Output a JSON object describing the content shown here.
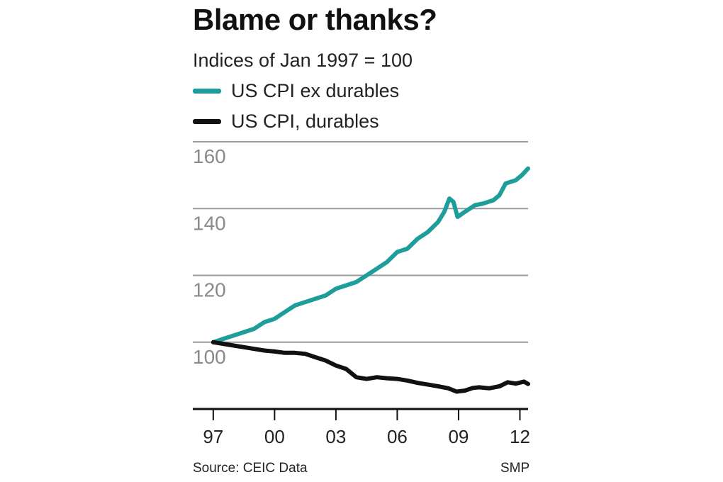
{
  "chart_data": {
    "type": "line",
    "title": "Blame or thanks?",
    "subtitle": "Indices of Jan 1997 = 100",
    "ylim": [
      80,
      160
    ],
    "y_ticks": [
      100,
      120,
      140,
      160
    ],
    "x_ticks": [
      {
        "label": "97",
        "year": 1997
      },
      {
        "label": "00",
        "year": 2000
      },
      {
        "label": "03",
        "year": 2003
      },
      {
        "label": "06",
        "year": 2006
      },
      {
        "label": "09",
        "year": 2009
      },
      {
        "label": "12",
        "year": 2012
      }
    ],
    "xlim": [
      1996.0,
      2012.4
    ],
    "series": [
      {
        "name": "US CPI ex durables",
        "color": "#1e9e9a",
        "points": [
          [
            1997.0,
            100
          ],
          [
            1997.5,
            101
          ],
          [
            1998.0,
            102
          ],
          [
            1998.5,
            103
          ],
          [
            1999.0,
            104
          ],
          [
            1999.5,
            106
          ],
          [
            2000.0,
            107
          ],
          [
            2000.5,
            109
          ],
          [
            2001.0,
            111
          ],
          [
            2001.5,
            112
          ],
          [
            2002.0,
            113
          ],
          [
            2002.5,
            114
          ],
          [
            2003.0,
            116
          ],
          [
            2003.5,
            117
          ],
          [
            2004.0,
            118
          ],
          [
            2004.5,
            120
          ],
          [
            2005.0,
            122
          ],
          [
            2005.5,
            124
          ],
          [
            2006.0,
            127
          ],
          [
            2006.5,
            128
          ],
          [
            2007.0,
            131
          ],
          [
            2007.5,
            133
          ],
          [
            2008.0,
            136
          ],
          [
            2008.3,
            139
          ],
          [
            2008.55,
            143
          ],
          [
            2008.75,
            142
          ],
          [
            2008.95,
            137.5
          ],
          [
            2009.3,
            139
          ],
          [
            2009.8,
            141
          ],
          [
            2010.2,
            141.5
          ],
          [
            2010.7,
            142.5
          ],
          [
            2011.0,
            144
          ],
          [
            2011.3,
            147.5
          ],
          [
            2011.8,
            148.5
          ],
          [
            2012.1,
            150
          ],
          [
            2012.4,
            152
          ]
        ]
      },
      {
        "name": "US CPI, durables",
        "color": "#111111",
        "points": [
          [
            1997.0,
            100
          ],
          [
            1997.5,
            99.5
          ],
          [
            1998.0,
            99
          ],
          [
            1998.5,
            98.5
          ],
          [
            1999.0,
            98
          ],
          [
            1999.5,
            97.5
          ],
          [
            2000.0,
            97.2
          ],
          [
            2000.5,
            96.8
          ],
          [
            2001.0,
            96.8
          ],
          [
            2001.5,
            96.5
          ],
          [
            2002.0,
            95.5
          ],
          [
            2002.5,
            94.5
          ],
          [
            2003.0,
            93
          ],
          [
            2003.5,
            92
          ],
          [
            2004.0,
            89.5
          ],
          [
            2004.5,
            89
          ],
          [
            2005.0,
            89.5
          ],
          [
            2005.5,
            89.2
          ],
          [
            2006.0,
            89
          ],
          [
            2006.5,
            88.5
          ],
          [
            2007.0,
            87.8
          ],
          [
            2007.5,
            87.3
          ],
          [
            2008.0,
            86.8
          ],
          [
            2008.5,
            86.2
          ],
          [
            2008.9,
            85.2
          ],
          [
            2009.3,
            85.5
          ],
          [
            2009.7,
            86.3
          ],
          [
            2010.0,
            86.5
          ],
          [
            2010.5,
            86.2
          ],
          [
            2011.0,
            86.8
          ],
          [
            2011.4,
            88.0
          ],
          [
            2011.8,
            87.6
          ],
          [
            2012.2,
            88.2
          ],
          [
            2012.4,
            87.5
          ]
        ]
      }
    ]
  },
  "footer": {
    "source": "Source: CEIC Data",
    "credit": "SMP"
  }
}
